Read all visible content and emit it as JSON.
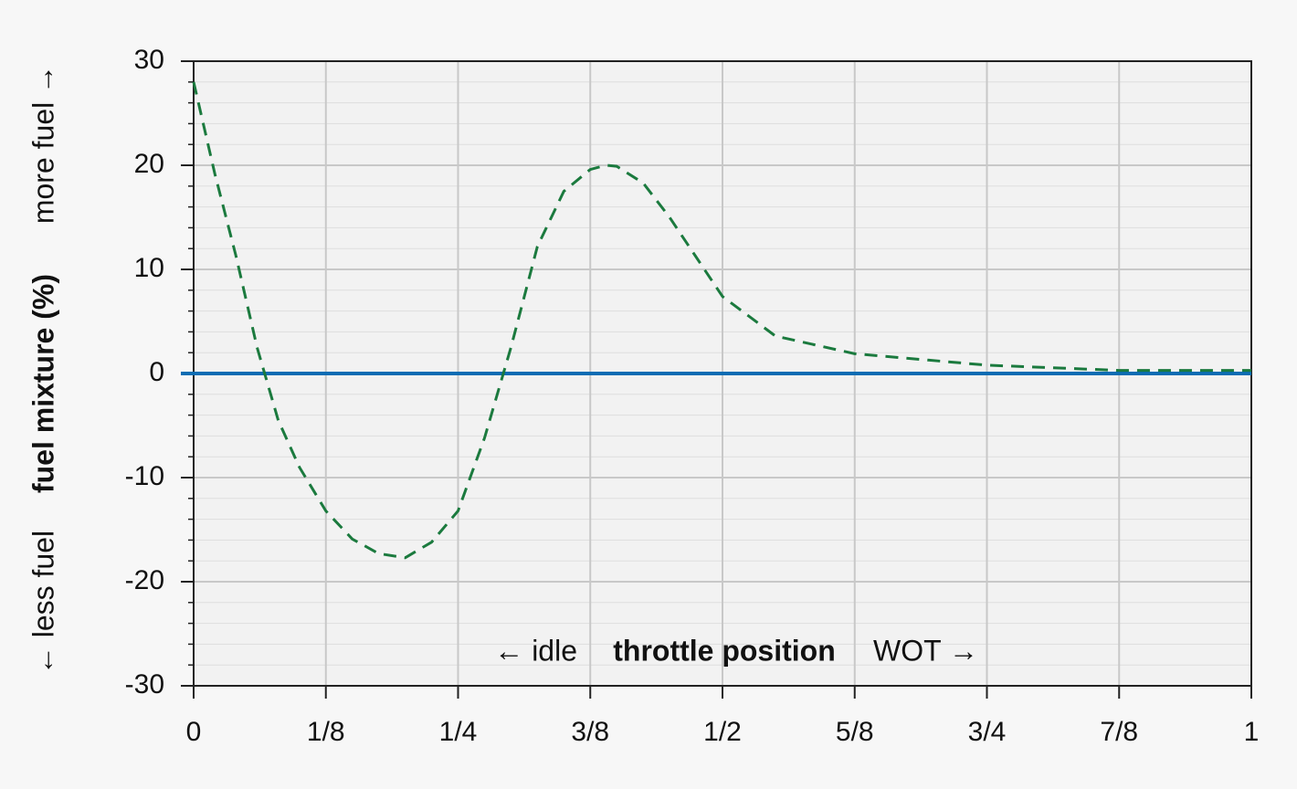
{
  "chart_data": {
    "type": "line",
    "x": [
      0,
      0.02,
      0.04,
      0.06,
      0.08,
      0.1,
      0.125,
      0.15,
      0.175,
      0.2,
      0.225,
      0.25,
      0.275,
      0.3,
      0.325,
      0.35,
      0.375,
      0.39,
      0.4,
      0.425,
      0.45,
      0.5,
      0.55,
      0.625,
      0.75,
      0.875,
      1
    ],
    "series": [
      {
        "color": "#1b7a3e",
        "dashed": true,
        "values": [
          28,
          19.2,
          11.3,
          2.5,
          -4.5,
          -9,
          -13.2,
          -15.9,
          -17.3,
          -17.7,
          -16.2,
          -13.2,
          -6.2,
          2.5,
          12.2,
          17.5,
          19.6,
          20,
          19.9,
          18.3,
          15,
          7.4,
          3.6,
          1.9,
          0.8,
          0.3,
          0.3
        ]
      }
    ],
    "reference_line": {
      "value": 0,
      "color": "#0a6db3"
    },
    "xlim": [
      0,
      1
    ],
    "xticks": [
      0,
      {
        "value": 0.125,
        "label": "1/8"
      },
      {
        "value": 0.25,
        "label": "1/4"
      },
      {
        "value": 0.375,
        "label": "3/8"
      },
      {
        "value": 0.5,
        "label": "1/2"
      },
      {
        "value": 0.625,
        "label": "5/8"
      },
      {
        "value": 0.75,
        "label": "3/4"
      },
      {
        "value": 0.875,
        "label": "7/8"
      },
      1
    ],
    "ylim": [
      -30,
      30
    ],
    "yticks": [
      -30,
      -20,
      -10,
      0,
      10,
      20,
      30
    ],
    "y_minor_ticks": [
      -28,
      -26,
      -24,
      -22,
      -18,
      -16,
      -14,
      -12,
      -8,
      -6,
      -4,
      -2,
      2,
      4,
      6,
      8,
      12,
      14,
      16,
      18,
      22,
      24,
      26,
      28
    ],
    "grid": true,
    "ylabel": {
      "left": "← less fuel",
      "main": "fuel mixture (%)",
      "right": "more fuel →"
    },
    "xlabel": {
      "left": "← idle",
      "main": "throttle position",
      "right": "WOT →"
    }
  }
}
